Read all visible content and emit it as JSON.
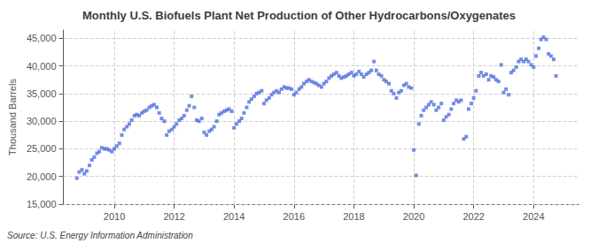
{
  "chart_data": {
    "type": "scatter",
    "title": "Monthly U.S. Biofuels Plant Net Production of Other Hydrocarbons/Oxygenates",
    "ylabel": "Thousand Barrels",
    "annotations": [
      "Source: U.S. Energy Information Administration"
    ],
    "marker": "square",
    "grid": true,
    "xlim": [
      2008.3,
      2025.5
    ],
    "xticks": [
      2010,
      2012,
      2014,
      2016,
      2018,
      2020,
      2022,
      2024
    ],
    "ylim": [
      15000,
      46500
    ],
    "yticks": [
      {
        "value": 15000,
        "label": "15,000"
      },
      {
        "value": 20000,
        "label": "20,000"
      },
      {
        "value": 25000,
        "label": "25,000"
      },
      {
        "value": 30000,
        "label": "30,000"
      },
      {
        "value": 35000,
        "label": "35,000"
      },
      {
        "value": 40000,
        "label": "40,000"
      },
      {
        "value": 45000,
        "label": "45,000"
      }
    ],
    "x": [
      2008.75,
      2008.83,
      2008.92,
      2009.0,
      2009.08,
      2009.17,
      2009.25,
      2009.33,
      2009.42,
      2009.5,
      2009.58,
      2009.67,
      2009.75,
      2009.83,
      2009.92,
      2010.0,
      2010.08,
      2010.17,
      2010.25,
      2010.33,
      2010.42,
      2010.5,
      2010.58,
      2010.67,
      2010.75,
      2010.83,
      2010.92,
      2011.0,
      2011.08,
      2011.17,
      2011.25,
      2011.33,
      2011.42,
      2011.5,
      2011.58,
      2011.67,
      2011.75,
      2011.83,
      2011.92,
      2012.0,
      2012.08,
      2012.17,
      2012.25,
      2012.33,
      2012.42,
      2012.5,
      2012.58,
      2012.67,
      2012.75,
      2012.83,
      2012.92,
      2013.0,
      2013.08,
      2013.17,
      2013.25,
      2013.33,
      2013.42,
      2013.5,
      2013.58,
      2013.67,
      2013.75,
      2013.83,
      2013.92,
      2014.0,
      2014.08,
      2014.17,
      2014.25,
      2014.33,
      2014.42,
      2014.5,
      2014.58,
      2014.67,
      2014.75,
      2014.83,
      2014.92,
      2015.0,
      2015.08,
      2015.17,
      2015.25,
      2015.33,
      2015.42,
      2015.5,
      2015.58,
      2015.67,
      2015.75,
      2015.83,
      2015.92,
      2016.0,
      2016.08,
      2016.17,
      2016.25,
      2016.33,
      2016.42,
      2016.5,
      2016.58,
      2016.67,
      2016.75,
      2016.83,
      2016.92,
      2017.0,
      2017.08,
      2017.17,
      2017.25,
      2017.33,
      2017.42,
      2017.5,
      2017.58,
      2017.67,
      2017.75,
      2017.83,
      2017.92,
      2018.0,
      2018.08,
      2018.17,
      2018.25,
      2018.33,
      2018.42,
      2018.5,
      2018.58,
      2018.67,
      2018.75,
      2018.83,
      2018.92,
      2019.0,
      2019.08,
      2019.17,
      2019.25,
      2019.33,
      2019.42,
      2019.5,
      2019.58,
      2019.67,
      2019.75,
      2019.83,
      2019.92,
      2020.0,
      2020.08,
      2020.17,
      2020.25,
      2020.33,
      2020.42,
      2020.5,
      2020.58,
      2020.67,
      2020.75,
      2020.83,
      2020.92,
      2021.0,
      2021.08,
      2021.17,
      2021.25,
      2021.33,
      2021.42,
      2021.5,
      2021.58,
      2021.67,
      2021.75,
      2021.83,
      2021.92,
      2022.0,
      2022.08,
      2022.17,
      2022.25,
      2022.33,
      2022.42,
      2022.5,
      2022.58,
      2022.67,
      2022.75,
      2022.83,
      2022.92,
      2023.0,
      2023.08,
      2023.17,
      2023.25,
      2023.33,
      2023.42,
      2023.5,
      2023.58,
      2023.67,
      2023.75,
      2023.83,
      2023.92,
      2024.0,
      2024.08,
      2024.17,
      2024.25,
      2024.33,
      2024.42,
      2024.5,
      2024.58,
      2024.67,
      2024.75
    ],
    "values": [
      19700,
      20800,
      21200,
      20500,
      21000,
      22000,
      23000,
      23500,
      24200,
      24500,
      25200,
      25000,
      25000,
      24800,
      24500,
      25000,
      25500,
      26000,
      27500,
      28500,
      29000,
      29500,
      30200,
      31000,
      31200,
      31000,
      31500,
      31800,
      32000,
      32500,
      32800,
      33000,
      32500,
      31500,
      30500,
      30000,
      27500,
      28200,
      28500,
      29000,
      29500,
      30200,
      30500,
      31000,
      32000,
      32800,
      34500,
      32500,
      30200,
      30000,
      30500,
      28000,
      27500,
      28200,
      28500,
      29000,
      30000,
      31200,
      31500,
      31800,
      32000,
      32200,
      31800,
      28800,
      29500,
      30000,
      30500,
      31500,
      32500,
      33500,
      34000,
      34500,
      35000,
      35200,
      35500,
      33200,
      33800,
      34200,
      34800,
      35200,
      35500,
      35200,
      35800,
      36200,
      36000,
      36000,
      35800,
      34800,
      35200,
      35800,
      36200,
      36800,
      37200,
      37500,
      37200,
      37000,
      36800,
      36500,
      36200,
      36800,
      37200,
      37800,
      38200,
      38500,
      38800,
      38200,
      37800,
      38000,
      38200,
      38500,
      38800,
      38200,
      38500,
      39000,
      38500,
      38000,
      38500,
      38800,
      39200,
      40800,
      39200,
      38500,
      38200,
      37500,
      37200,
      36800,
      35500,
      35000,
      34200,
      35200,
      35500,
      36500,
      36800,
      36200,
      36000,
      24800,
      20200,
      29500,
      31000,
      32000,
      32500,
      33000,
      33500,
      33000,
      32000,
      32500,
      33200,
      30200,
      30800,
      31200,
      32200,
      33200,
      33800,
      33500,
      33800,
      26800,
      27200,
      32200,
      33200,
      34200,
      35500,
      38200,
      38800,
      38200,
      38500,
      37500,
      38200,
      38000,
      37500,
      37200,
      40200,
      35200,
      35800,
      34800,
      38800,
      39200,
      39800,
      40800,
      41200,
      40800,
      41200,
      40800,
      40200,
      39800,
      41800,
      43200,
      44800,
      45200,
      44800,
      42200,
      41800,
      41200,
      38200
    ]
  }
}
